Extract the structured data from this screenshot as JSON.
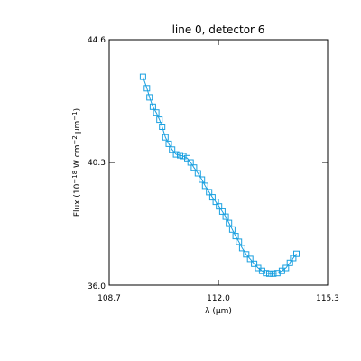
{
  "chart_data": {
    "type": "line",
    "title": "line 0, detector 6",
    "xlabel": "λ (μm)",
    "ylabel_parts": [
      "Flux (10",
      "−18",
      " W cm",
      "−2",
      "μm",
      "−1",
      ")"
    ],
    "xlim": [
      108.7,
      115.3
    ],
    "ylim": [
      36.0,
      44.6
    ],
    "x_ticks": [
      "108.7",
      "112.0",
      "115.3"
    ],
    "y_ticks": [
      "36.0",
      "40.3",
      "44.6"
    ],
    "marker": "square",
    "color": "#1aa0e0",
    "series": [
      {
        "x": [
          109.72,
          109.84,
          109.92,
          110.02,
          110.12,
          110.22,
          110.3,
          110.4,
          110.5,
          110.6,
          110.72,
          110.84,
          110.94,
          111.06,
          111.16,
          111.26,
          111.38,
          111.5,
          111.6,
          111.72,
          111.82,
          111.92,
          112.02,
          112.12,
          112.22,
          112.32,
          112.42,
          112.52,
          112.62,
          112.72,
          112.84,
          112.96,
          113.08,
          113.2,
          113.32,
          113.44,
          113.54,
          113.66,
          113.78,
          113.92,
          114.04,
          114.16,
          114.26,
          114.36
        ],
        "y": [
          43.3,
          42.9,
          42.58,
          42.25,
          42.05,
          41.8,
          41.55,
          41.18,
          40.95,
          40.75,
          40.58,
          40.55,
          40.52,
          40.45,
          40.3,
          40.12,
          39.92,
          39.7,
          39.48,
          39.26,
          39.08,
          38.92,
          38.76,
          38.58,
          38.4,
          38.18,
          37.95,
          37.72,
          37.52,
          37.3,
          37.08,
          36.92,
          36.75,
          36.6,
          36.5,
          36.42,
          36.4,
          36.4,
          36.42,
          36.5,
          36.6,
          36.78,
          36.95,
          37.1
        ]
      }
    ]
  }
}
